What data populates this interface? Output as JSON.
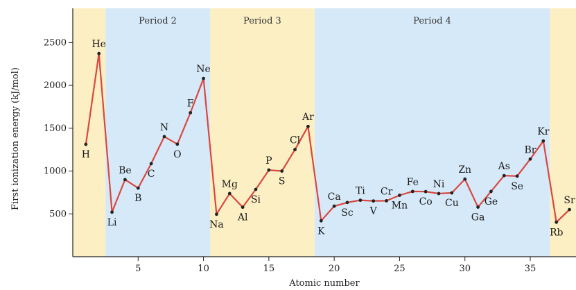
{
  "chart_data": {
    "type": "line",
    "title": "",
    "xlabel": "Atomic number",
    "ylabel": "First ionization energy (kJ/mol)",
    "xlim": [
      0,
      38.5
    ],
    "ylim": [
      0,
      2900
    ],
    "xticks": [
      5,
      10,
      15,
      20,
      25,
      30,
      35
    ],
    "yticks": [
      500,
      1000,
      1500,
      2000,
      2500
    ],
    "line_color": "#d9473f",
    "bands": [
      {
        "label": "",
        "from": 0,
        "to": 2.5,
        "color": "#fcefc4"
      },
      {
        "label": "Period 2",
        "from": 2.5,
        "to": 10.5,
        "color": "#d6e9f8"
      },
      {
        "label": "Period 3",
        "from": 10.5,
        "to": 18.5,
        "color": "#fcefc4"
      },
      {
        "label": "Period 4",
        "from": 18.5,
        "to": 36.5,
        "color": "#d6e9f8"
      },
      {
        "label": "",
        "from": 36.5,
        "to": 38.5,
        "color": "#fcefc4"
      }
    ],
    "points": [
      {
        "z": 1,
        "symbol": "H",
        "value": 1312
      },
      {
        "z": 2,
        "symbol": "He",
        "value": 2372
      },
      {
        "z": 3,
        "symbol": "Li",
        "value": 520
      },
      {
        "z": 4,
        "symbol": "Be",
        "value": 900
      },
      {
        "z": 5,
        "symbol": "B",
        "value": 801
      },
      {
        "z": 6,
        "symbol": "C",
        "value": 1086
      },
      {
        "z": 7,
        "symbol": "N",
        "value": 1402
      },
      {
        "z": 8,
        "symbol": "O",
        "value": 1314
      },
      {
        "z": 9,
        "symbol": "F",
        "value": 1681
      },
      {
        "z": 10,
        "symbol": "Ne",
        "value": 2081
      },
      {
        "z": 11,
        "symbol": "Na",
        "value": 496
      },
      {
        "z": 12,
        "symbol": "Mg",
        "value": 738
      },
      {
        "z": 13,
        "symbol": "Al",
        "value": 578
      },
      {
        "z": 14,
        "symbol": "Si",
        "value": 786
      },
      {
        "z": 15,
        "symbol": "P",
        "value": 1012
      },
      {
        "z": 16,
        "symbol": "S",
        "value": 1000
      },
      {
        "z": 17,
        "symbol": "Cl",
        "value": 1251
      },
      {
        "z": 18,
        "symbol": "Ar",
        "value": 1521
      },
      {
        "z": 19,
        "symbol": "K",
        "value": 419
      },
      {
        "z": 20,
        "symbol": "Ca",
        "value": 590
      },
      {
        "z": 21,
        "symbol": "Sc",
        "value": 633
      },
      {
        "z": 22,
        "symbol": "Ti",
        "value": 659
      },
      {
        "z": 23,
        "symbol": "V",
        "value": 651
      },
      {
        "z": 24,
        "symbol": "Cr",
        "value": 653
      },
      {
        "z": 25,
        "symbol": "Mn",
        "value": 717
      },
      {
        "z": 26,
        "symbol": "Fe",
        "value": 762
      },
      {
        "z": 27,
        "symbol": "Co",
        "value": 760
      },
      {
        "z": 28,
        "symbol": "Ni",
        "value": 737
      },
      {
        "z": 29,
        "symbol": "Cu",
        "value": 745
      },
      {
        "z": 30,
        "symbol": "Zn",
        "value": 906
      },
      {
        "z": 31,
        "symbol": "Ga",
        "value": 579
      },
      {
        "z": 32,
        "symbol": "Ge",
        "value": 762
      },
      {
        "z": 33,
        "symbol": "As",
        "value": 947
      },
      {
        "z": 34,
        "symbol": "Se",
        "value": 941
      },
      {
        "z": 35,
        "symbol": "Br",
        "value": 1140
      },
      {
        "z": 36,
        "symbol": "Kr",
        "value": 1351
      },
      {
        "z": 37,
        "symbol": "Rb",
        "value": 403
      },
      {
        "z": 38,
        "symbol": "Sr",
        "value": 550
      }
    ]
  }
}
